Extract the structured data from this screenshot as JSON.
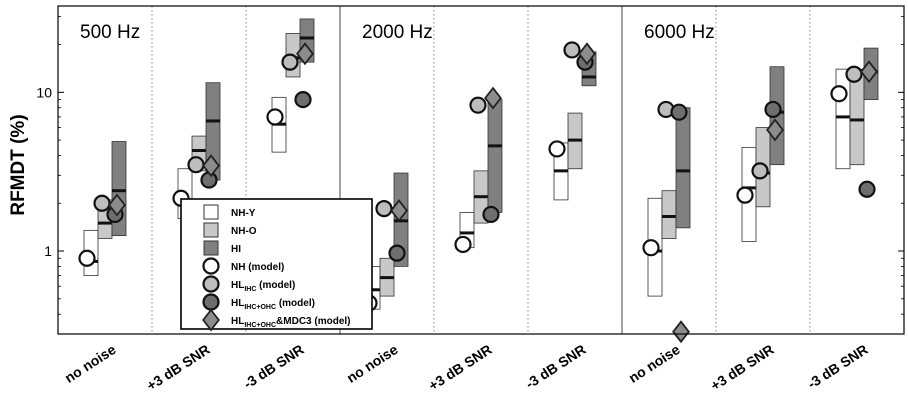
{
  "chart_data": {
    "type": "box-with-markers",
    "ylabel": "RFMDT (%)",
    "yscale": "log",
    "ylim": [
      0.3,
      35
    ],
    "yticks": [
      1,
      10
    ],
    "ytick_labels": [
      "1",
      "10"
    ],
    "panels": [
      {
        "title": "500 Hz",
        "conditions": [
          {
            "label": "no noise",
            "boxes": {
              "NH-Y": [
                0.7,
                0.86,
                1.35
              ],
              "NH-O": [
                1.2,
                1.5,
                2.1
              ],
              "HI": [
                1.25,
                2.4,
                4.9
              ]
            },
            "markers": {
              "NH (model)": 0.9,
              "HLIHC (model)": 2.0,
              "HLIHC+OHC (model)": 1.7,
              "HLIHC+OHC&MDC3 (model)": 1.95
            }
          },
          {
            "label": "+3 dB SNR",
            "boxes": {
              "NH-Y": [
                1.6,
                2.1,
                3.3
              ],
              "NH-O": [
                3.2,
                4.3,
                5.3
              ],
              "HI": [
                2.8,
                6.6,
                11.5
              ]
            },
            "markers": {
              "NH (model)": 2.15,
              "HLIHC (model)": 3.5,
              "HLIHC+OHC (model)": 2.8,
              "HLIHC+OHC&MDC3 (model)": 3.45
            }
          },
          {
            "label": "-3 dB SNR",
            "boxes": {
              "NH-Y": [
                4.2,
                6.3,
                9.3
              ],
              "NH-O": [
                12.5,
                16.5,
                23.5
              ],
              "HI": [
                15.5,
                22.0,
                29.0
              ]
            },
            "markers": {
              "NH (model)": 7.0,
              "HLIHC (model)": 15.5,
              "HLIHC+OHC (model)": 9.0,
              "HLIHC+OHC&MDC3 (model)": 17.5
            }
          }
        ]
      },
      {
        "title": "2000 Hz",
        "conditions": [
          {
            "label": "no noise",
            "boxes": {
              "NH-Y": [
                0.43,
                0.57,
                0.8
              ],
              "NH-O": [
                0.52,
                0.68,
                0.9
              ],
              "HI": [
                0.8,
                1.55,
                3.1
              ]
            },
            "markers": {
              "NH (model)": 0.47,
              "HLIHC (model)": 1.85,
              "HLIHC+OHC (model)": 0.97,
              "HLIHC+OHC&MDC3 (model)": 1.8
            }
          },
          {
            "label": "+3 dB SNR",
            "boxes": {
              "NH-Y": [
                1.05,
                1.3,
                1.75
              ],
              "NH-O": [
                1.5,
                2.2,
                3.2
              ],
              "HI": [
                1.75,
                4.6,
                9.0
              ]
            },
            "markers": {
              "NH (model)": 1.1,
              "HLIHC (model)": 8.3,
              "HLIHC+OHC (model)": 1.7,
              "HLIHC+OHC&MDC3 (model)": 9.2
            }
          },
          {
            "label": "-3 dB SNR",
            "boxes": {
              "NH-Y": [
                2.1,
                3.2,
                4.8
              ],
              "NH-O": [
                3.3,
                5.0,
                7.4
              ],
              "HI": [
                11.0,
                12.5,
                18.0
              ]
            },
            "markers": {
              "NH (model)": 4.4,
              "HLIHC (model)": 18.5,
              "HLIHC+OHC (model)": 15.5,
              "HLIHC+OHC&MDC3 (model)": 17.5
            }
          }
        ]
      },
      {
        "title": "6000 Hz",
        "conditions": [
          {
            "label": "no noise",
            "boxes": {
              "NH-Y": [
                0.52,
                1.0,
                2.15
              ],
              "NH-O": [
                1.2,
                1.65,
                2.4
              ],
              "HI": [
                1.4,
                3.2,
                8.0
              ]
            },
            "markers": {
              "NH (model)": 1.05,
              "HLIHC (model)": 7.8,
              "HLIHC+OHC (model)": 7.5,
              "HLIHC+OHC&MDC3 (model)": 0.31
            }
          },
          {
            "label": "+3 dB SNR",
            "boxes": {
              "NH-Y": [
                1.15,
                2.5,
                4.5
              ],
              "NH-O": [
                1.9,
                3.1,
                6.0
              ],
              "HI": [
                3.5,
                7.5,
                14.5
              ]
            },
            "markers": {
              "NH (model)": 2.25,
              "HLIHC (model)": 3.2,
              "HLIHC+OHC (model)": 7.8,
              "HLIHC+OHC&MDC3 (model)": 5.8
            }
          },
          {
            "label": "-3 dB SNR",
            "boxes": {
              "NH-Y": [
                3.3,
                7.0,
                14.0
              ],
              "NH-O": [
                3.5,
                6.7,
                14.0
              ],
              "HI": [
                9.0,
                13.5,
                19.0
              ]
            },
            "markers": {
              "NH (model)": 9.8,
              "HLIHC (model)": 13.0,
              "HLIHC+OHC (model)": 2.45,
              "HLIHC+OHC&MDC3 (model)": 13.5
            }
          }
        ]
      }
    ],
    "legend": {
      "placement": "bottom-left",
      "entries": [
        {
          "key": "NH-Y",
          "label": "NH-Y",
          "sub": "",
          "tail": "",
          "symbol": "box",
          "color": "#ffffff"
        },
        {
          "key": "NH-O",
          "label": "NH-O",
          "sub": "",
          "tail": "",
          "symbol": "box",
          "color": "#c8c8c8"
        },
        {
          "key": "HI",
          "label": "HI",
          "sub": "",
          "tail": "",
          "symbol": "box",
          "color": "#808080"
        },
        {
          "key": "NH (model)",
          "label": "NH (model)",
          "sub": "",
          "tail": "",
          "symbol": "circle",
          "color": "#ffffff"
        },
        {
          "key": "HLIHC (model)",
          "label": "HL",
          "sub": "IHC",
          "tail": " (model)",
          "symbol": "circle",
          "color": "#bdbdbd"
        },
        {
          "key": "HLIHC+OHC (model)",
          "label": "HL",
          "sub": "IHC+OHC",
          "tail": " (model)",
          "symbol": "circle",
          "color": "#6e6e6e"
        },
        {
          "key": "HLIHC+OHC&MDC3 (model)",
          "label": "HL",
          "sub": "IHC+OHC",
          "tail": "&MDC3 (model)",
          "symbol": "diamond",
          "color": "#8c8c8c"
        }
      ]
    }
  }
}
